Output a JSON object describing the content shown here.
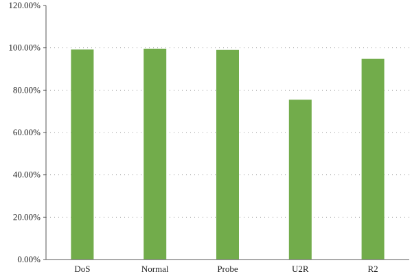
{
  "chart_data": {
    "type": "bar",
    "categories": [
      "DoS",
      "Normal",
      "Probe",
      "U2R",
      "R2"
    ],
    "values": [
      99.2,
      99.6,
      99.0,
      75.5,
      94.8
    ],
    "title": "",
    "xlabel": "",
    "ylabel": "",
    "ylim": [
      0,
      120
    ],
    "yticks": [
      "0.00%",
      "20.00%",
      "40.00%",
      "60.00%",
      "80.00%",
      "100.00%",
      "120.00%"
    ],
    "grid": "horizontal dotted",
    "legend": "none",
    "colors": {
      "bar": "#72AC4B",
      "grid": "#999999",
      "axis": "#555555"
    }
  }
}
